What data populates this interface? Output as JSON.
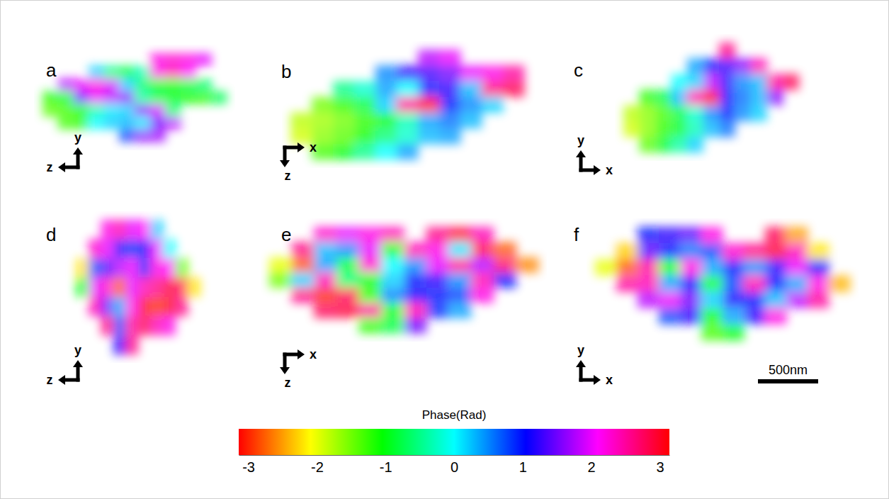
{
  "chart_data": [
    {
      "type": "heatmap",
      "title": "a",
      "axis_arrows": [
        {
          "label": "y",
          "direction": "up"
        },
        {
          "label": "z",
          "direction": "left"
        }
      ],
      "cells": [
        [
          null,
          null,
          null,
          null,
          null,
          null,
          null,
          2.2,
          2.3,
          2.2,
          2.0,
          null
        ],
        [
          null,
          null,
          null,
          0.2,
          -0.5,
          -0.8,
          -0.3,
          2.2,
          2.4,
          2.1,
          null,
          null
        ],
        [
          null,
          1.8,
          2.0,
          2.2,
          1.9,
          0.2,
          -0.6,
          -0.9,
          -1.0,
          -0.8,
          -0.6,
          null
        ],
        [
          -1.2,
          -0.9,
          1.5,
          2.0,
          1.8,
          1.6,
          -0.4,
          -0.8,
          -1.0,
          -1.1,
          -1.2,
          -0.7
        ],
        [
          -1.4,
          -1.3,
          -1.1,
          -0.3,
          0.1,
          0.2,
          1.6,
          1.9,
          -0.6,
          null,
          null,
          null
        ],
        [
          null,
          -1.3,
          -1.2,
          0.0,
          0.2,
          0.3,
          0.1,
          1.5,
          1.8,
          null,
          null,
          null
        ],
        [
          null,
          null,
          null,
          null,
          null,
          0.8,
          1.6,
          1.7,
          null,
          null,
          null,
          null
        ]
      ]
    },
    {
      "type": "heatmap",
      "title": "b",
      "axis_arrows": [
        {
          "label": "x",
          "direction": "right"
        },
        {
          "label": "z",
          "direction": "down"
        }
      ],
      "cells": [
        [
          null,
          null,
          null,
          null,
          null,
          null,
          1.8,
          2.0,
          null,
          null,
          null,
          null
        ],
        [
          null,
          null,
          null,
          null,
          0.5,
          1.2,
          1.3,
          1.5,
          2.0,
          2.2,
          2.5,
          null
        ],
        [
          null,
          null,
          -0.5,
          -0.2,
          0.4,
          0.0,
          1.0,
          1.2,
          0.3,
          2.6,
          2.8,
          null
        ],
        [
          null,
          -1.5,
          -1.2,
          -0.8,
          0.2,
          2.5,
          2.9,
          1.0,
          0.5,
          0.2,
          null,
          null
        ],
        [
          -1.8,
          -1.7,
          -1.5,
          -1.2,
          -1.0,
          -0.3,
          0.4,
          0.6,
          0.3,
          null,
          null,
          null
        ],
        [
          -1.9,
          -1.6,
          -1.4,
          -1.1,
          -0.6,
          -0.2,
          0.3,
          0.4,
          null,
          null,
          null,
          null
        ],
        [
          null,
          -1.3,
          -1.0,
          -0.5,
          0.0,
          0.4,
          null,
          null,
          null,
          null,
          null,
          null
        ]
      ]
    },
    {
      "type": "heatmap",
      "title": "c",
      "axis_arrows": [
        {
          "label": "y",
          "direction": "up"
        },
        {
          "label": "x",
          "direction": "right"
        }
      ],
      "cells": [
        [
          null,
          null,
          null,
          null,
          null,
          null,
          2.6,
          null,
          null,
          null,
          null,
          null
        ],
        [
          null,
          null,
          null,
          null,
          0.4,
          1.0,
          1.3,
          1.6,
          2.4,
          null,
          null,
          null
        ],
        [
          null,
          null,
          null,
          0.0,
          0.2,
          1.8,
          1.2,
          0.5,
          0.3,
          2.5,
          2.8,
          null
        ],
        [
          null,
          -1.2,
          -0.8,
          0.3,
          2.4,
          2.9,
          1.1,
          0.6,
          0.3,
          1.6,
          null,
          null
        ],
        [
          -1.8,
          -1.6,
          -1.3,
          -0.8,
          -0.2,
          0.5,
          1.0,
          0.5,
          0.2,
          null,
          null,
          null
        ],
        [
          -1.9,
          -1.6,
          -1.2,
          -0.9,
          -0.3,
          0.3,
          0.6,
          null,
          null,
          null,
          null,
          null
        ],
        [
          null,
          -1.4,
          -0.9,
          -0.4,
          0.2,
          null,
          null,
          null,
          null,
          null,
          null,
          null
        ]
      ]
    },
    {
      "type": "heatmap",
      "title": "d",
      "axis_arrows": [
        {
          "label": "y",
          "direction": "up"
        },
        {
          "label": "z",
          "direction": "left"
        }
      ],
      "cells": [
        [
          null,
          null,
          null,
          2.2,
          2.4,
          2.0,
          2.1,
          0.2,
          null,
          null,
          null,
          null
        ],
        [
          null,
          null,
          2.3,
          2.0,
          1.2,
          0.9,
          1.1,
          2.0,
          0.0,
          null,
          null,
          null
        ],
        [
          null,
          -2.2,
          0.8,
          1.4,
          1.8,
          2.0,
          1.0,
          2.2,
          2.1,
          -1.5,
          null,
          null
        ],
        [
          null,
          -1.0,
          2.0,
          2.3,
          -2.8,
          2.0,
          2.4,
          2.6,
          2.9,
          2.8,
          -2.2,
          null
        ],
        [
          null,
          null,
          2.4,
          1.5,
          0.4,
          2.2,
          3.0,
          -3.0,
          3.0,
          2.6,
          null,
          null
        ],
        [
          null,
          null,
          null,
          2.6,
          0.8,
          2.5,
          2.8,
          2.4,
          2.2,
          null,
          null,
          null
        ],
        [
          null,
          null,
          null,
          null,
          1.2,
          2.6,
          null,
          null,
          null,
          null,
          null,
          null
        ]
      ]
    },
    {
      "type": "heatmap",
      "title": "e",
      "axis_arrows": [
        {
          "label": "x",
          "direction": "right"
        },
        {
          "label": "z",
          "direction": "down"
        }
      ],
      "cells": [
        [
          null,
          null,
          2.3,
          2.0,
          2.2,
          2.4,
          null,
          2.6,
          2.9,
          2.4,
          null,
          null
        ],
        [
          null,
          2.6,
          0.3,
          0.5,
          2.0,
          -1.0,
          2.4,
          2.2,
          0.1,
          2.8,
          -2.8,
          null
        ],
        [
          -2.0,
          -2.8,
          0.4,
          -0.8,
          2.3,
          0.0,
          0.5,
          2.0,
          2.5,
          1.8,
          2.7,
          -2.6
        ],
        [
          -1.5,
          0.2,
          2.4,
          -0.6,
          -1.0,
          0.2,
          1.0,
          1.2,
          0.5,
          2.4,
          1.0,
          null
        ],
        [
          null,
          2.6,
          -3.0,
          2.8,
          -1.2,
          0.5,
          1.1,
          1.0,
          0.8,
          2.2,
          null,
          null
        ],
        [
          null,
          null,
          2.8,
          2.9,
          2.5,
          -0.9,
          2.4,
          0.9,
          0.4,
          null,
          null,
          null
        ],
        [
          null,
          null,
          null,
          null,
          -1.2,
          -0.8,
          1.5,
          null,
          null,
          null,
          null,
          null
        ]
      ]
    },
    {
      "type": "heatmap",
      "title": "f",
      "axis_arrows": [
        {
          "label": "y",
          "direction": "up"
        },
        {
          "label": "x",
          "direction": "right"
        }
      ],
      "cells": [
        [
          null,
          null,
          1.0,
          1.2,
          1.4,
          2.2,
          null,
          null,
          2.8,
          -2.5,
          null,
          null
        ],
        [
          null,
          -2.3,
          1.4,
          1.0,
          0.6,
          0.8,
          2.3,
          2.6,
          2.9,
          2.4,
          -2.2,
          null
        ],
        [
          -2.0,
          -2.8,
          2.5,
          -1.0,
          2.2,
          0.4,
          1.0,
          0.5,
          1.2,
          2.0,
          1.0,
          null
        ],
        [
          null,
          2.5,
          2.4,
          0.4,
          1.1,
          -0.8,
          0.8,
          2.4,
          1.0,
          0.4,
          2.2,
          -2.4
        ],
        [
          null,
          null,
          1.8,
          2.0,
          1.5,
          0.2,
          1.1,
          1.0,
          0.3,
          1.8,
          2.5,
          null
        ],
        [
          null,
          null,
          null,
          0.8,
          1.2,
          -1.0,
          0.4,
          1.2,
          2.2,
          null,
          null,
          null
        ],
        [
          null,
          null,
          null,
          null,
          null,
          -1.3,
          -1.0,
          null,
          null,
          null,
          null,
          null
        ]
      ]
    }
  ],
  "colorbar": {
    "label": "Phase(Rad)",
    "range": [
      -3.14,
      3.14
    ],
    "ticks": [
      -3,
      -2,
      -1,
      0,
      1,
      2,
      3
    ]
  },
  "scale_bar": {
    "value": 500,
    "label": "500nm"
  }
}
